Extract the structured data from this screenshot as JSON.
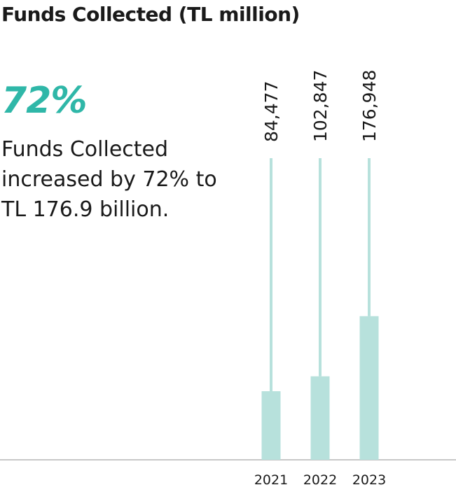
{
  "title": "Funds Collected (TL million)",
  "highlight": "72%",
  "description_lines": [
    "Funds Collected",
    "increased by 72% to",
    "TL 176.9 billion."
  ],
  "colors": {
    "accent": "#2fb7a8",
    "bar": "#b7e1dc",
    "axis": "#c8c8c8",
    "text": "#1a1a1a"
  },
  "chart_data": {
    "type": "bar",
    "categories": [
      "2021",
      "2022",
      "2023"
    ],
    "values": [
      84477,
      102847,
      176948
    ],
    "value_labels": [
      "84,477",
      "102,847",
      "176,948"
    ],
    "title": "Funds Collected (TL million)",
    "xlabel": "",
    "ylabel": "",
    "ylim": [
      0,
      400000
    ],
    "grid": false,
    "legend": "none"
  }
}
